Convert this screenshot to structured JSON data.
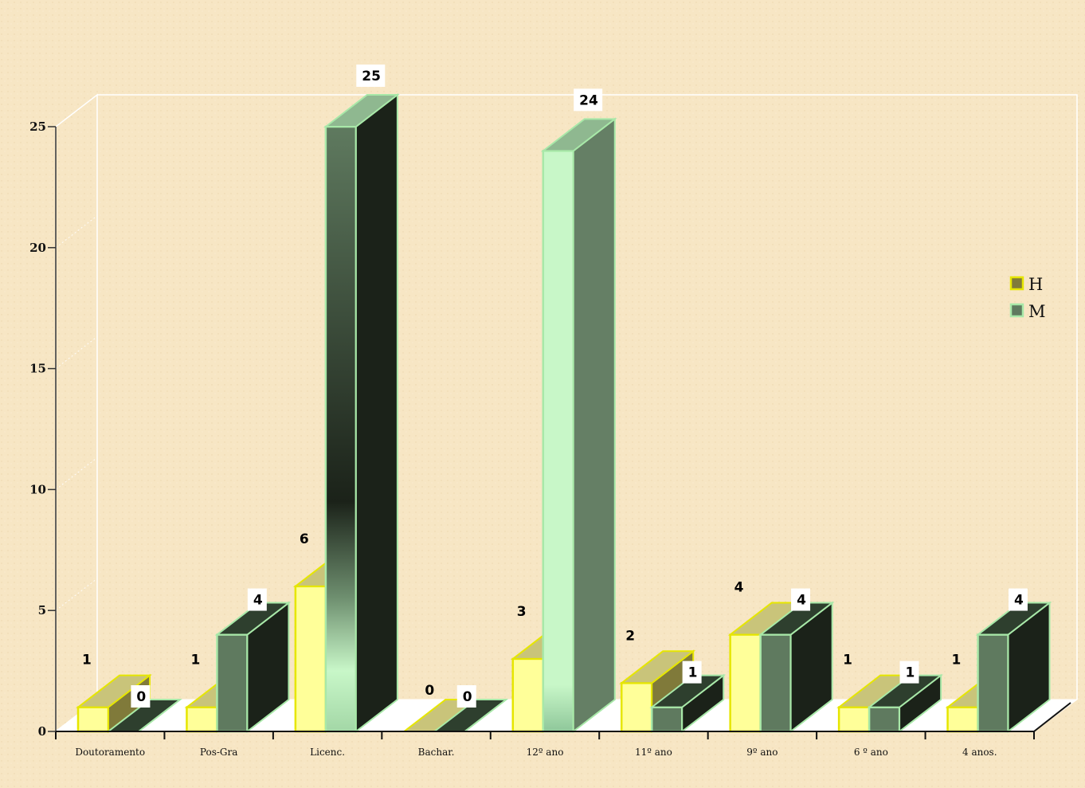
{
  "chart_data": {
    "type": "bar",
    "categories": [
      "Doutoramento",
      "Pos-Gra",
      "Licenc.",
      "Bachar.",
      "12º ano",
      "11º ano",
      "9º ano",
      "6 º ano",
      "4 anos."
    ],
    "series": [
      {
        "name": "H",
        "values": [
          1,
          1,
          6,
          0,
          3,
          2,
          4,
          1,
          1
        ]
      },
      {
        "name": "M",
        "values": [
          0,
          4,
          25,
          0,
          24,
          1,
          4,
          1,
          4
        ]
      }
    ],
    "yticks": [
      0,
      5,
      10,
      15,
      20,
      25
    ],
    "ylim": [
      0,
      25
    ],
    "legend_position": "right",
    "grid": false,
    "three_d": true,
    "colors": {
      "H_front": "#ffff99",
      "H_top": "#c9c47a",
      "H_side": "#807a3a",
      "H_edge": "#e6e600",
      "M_front": "#5f7a5f",
      "M_top": "#2e3f2e",
      "M_side": "#1b2219",
      "M_edge": "#a8e8a8",
      "M_highlight": "#c8f7c8",
      "background": "#f7e6c4"
    }
  }
}
